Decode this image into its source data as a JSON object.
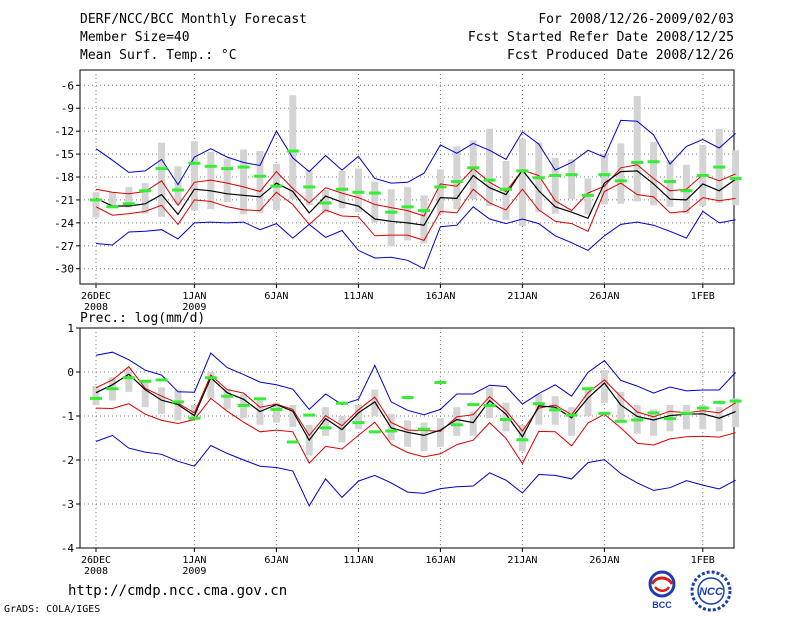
{
  "header": {
    "title": "DERF/NCC/BCC Monthly Forecast",
    "member": "Member Size=40",
    "variable": "Mean Surf. Temp.: °C",
    "period": "For 2008/12/26-2009/02/03",
    "started": "Fcst Started Refer Date 2008/12/25",
    "produced": "Fcst Produced Date 2008/12/26"
  },
  "footer": {
    "url": "http://cmdp.ncc.cma.gov.cn",
    "credit": "GrADS: COLA/IGES",
    "bcc_logo": "BCC",
    "ncc_logo": "NCC"
  },
  "colors": {
    "envelope": "#0000cc",
    "spread": "#dd0000",
    "mean": "#000000",
    "median": "#33ee33",
    "box": "#d4d4d4",
    "grid": "#7a7a7a"
  },
  "chart_data": [
    {
      "type": "line",
      "title": "Mean Surf. Temp.: °C",
      "xlabel": "",
      "ylabel": "°C",
      "ylim": [
        -32,
        -4
      ],
      "yticks": [
        -6,
        -9,
        -12,
        -15,
        -18,
        -21,
        -24,
        -27,
        -30
      ],
      "ytick_labels": [
        "-6",
        "-9",
        "-12",
        "-15",
        "-18",
        "-21",
        "-24",
        "-27",
        "-30"
      ],
      "x_tick_labels": [
        {
          "day": 0,
          "label": "26DEC",
          "year": "2008"
        },
        {
          "day": 6,
          "label": "1JAN",
          "year": "2009"
        },
        {
          "day": 11,
          "label": "6JAN"
        },
        {
          "day": 16,
          "label": "11JAN"
        },
        {
          "day": 21,
          "label": "16JAN"
        },
        {
          "day": 26,
          "label": "21JAN"
        },
        {
          "day": 31,
          "label": "26JAN"
        },
        {
          "day": 37,
          "label": "1FEB"
        }
      ],
      "days": [
        0,
        1,
        2,
        3,
        4,
        5,
        6,
        7,
        8,
        9,
        10,
        11,
        12,
        13,
        14,
        15,
        16,
        17,
        18,
        19,
        20,
        21,
        22,
        23,
        24,
        25,
        26,
        27,
        28,
        29,
        30,
        31,
        32,
        33,
        34,
        35,
        36,
        37,
        38,
        39
      ],
      "grid": true,
      "series": [
        {
          "name": "max",
          "color": "#0000cc",
          "values": [
            -14.3,
            -15.8,
            -17.4,
            -17.2,
            -15.7,
            -19.0,
            -15.4,
            -14.3,
            -15.4,
            -16.1,
            -16.5,
            -12.0,
            -15.5,
            -17.3,
            -15.2,
            -17.1,
            -15.3,
            -18.2,
            -18.8,
            -18.7,
            -17.5,
            -13.8,
            -14.9,
            -13.6,
            -14.5,
            -15.7,
            -12.1,
            -13.7,
            -17.1,
            -16.1,
            -14.5,
            -15.4,
            -10.6,
            -10.7,
            -12.5,
            -16.3,
            -14.0,
            -13.1,
            -14.2,
            -12.3
          ]
        },
        {
          "name": "upper",
          "color": "#dd0000",
          "values": [
            -19.6,
            -20.0,
            -20.2,
            -19.9,
            -18.5,
            -21.7,
            -18.7,
            -18.4,
            -18.8,
            -19.3,
            -19.9,
            -17.3,
            -19.5,
            -21.4,
            -19.4,
            -20.1,
            -20.7,
            -21.6,
            -22.0,
            -22.4,
            -23.1,
            -18.9,
            -19.2,
            -16.9,
            -18.7,
            -19.9,
            -17.1,
            -17.8,
            -21.1,
            -22.4,
            -20.1,
            -19.2,
            -16.8,
            -16.4,
            -18.2,
            -19.8,
            -19.6,
            -17.7,
            -18.5,
            -17.6
          ]
        },
        {
          "name": "mean",
          "color": "#000000",
          "values": [
            -20.8,
            -21.8,
            -21.8,
            -21.5,
            -20.3,
            -22.9,
            -19.6,
            -19.8,
            -20.2,
            -20.4,
            -20.6,
            -18.8,
            -19.9,
            -22.7,
            -20.5,
            -21.3,
            -21.8,
            -23.5,
            -23.8,
            -24.0,
            -24.3,
            -20.7,
            -20.8,
            -17.8,
            -19.4,
            -20.3,
            -17.1,
            -19.8,
            -21.9,
            -22.6,
            -23.4,
            -18.8,
            -17.3,
            -17.2,
            -18.9,
            -20.9,
            -21.0,
            -18.9,
            -19.8,
            -18.3
          ]
        },
        {
          "name": "lower",
          "color": "#dd0000",
          "values": [
            -21.9,
            -23.0,
            -22.8,
            -22.5,
            -21.7,
            -24.2,
            -21.0,
            -21.2,
            -21.9,
            -22.3,
            -22.4,
            -20.0,
            -21.6,
            -24.2,
            -22.3,
            -23.1,
            -23.2,
            -25.7,
            -25.6,
            -25.6,
            -26.3,
            -22.5,
            -22.7,
            -19.6,
            -21.4,
            -22.3,
            -19.6,
            -22.3,
            -23.8,
            -24.1,
            -25.1,
            -19.9,
            -18.8,
            -20.3,
            -20.6,
            -22.7,
            -22.5,
            -20.7,
            -21.1,
            -20.8
          ]
        },
        {
          "name": "min",
          "color": "#0000cc",
          "values": [
            -26.7,
            -26.9,
            -25.2,
            -25.1,
            -24.9,
            -26.1,
            -24.0,
            -23.9,
            -24.0,
            -23.9,
            -24.9,
            -24.1,
            -26.0,
            -24.2,
            -25.9,
            -25.0,
            -27.6,
            -28.6,
            -28.5,
            -28.9,
            -30.0,
            -24.5,
            -24.3,
            -21.9,
            -23.5,
            -24.1,
            -23.5,
            -24.1,
            -25.7,
            -26.6,
            -27.6,
            -25.7,
            -24.2,
            -23.9,
            -24.3,
            -25.1,
            -26.0,
            -22.5,
            -24.0,
            -23.6
          ]
        }
      ],
      "median_dashes": [
        -21.0,
        -21.9,
        -21.5,
        -19.8,
        -16.9,
        -19.7,
        -16.2,
        -16.6,
        -16.9,
        -16.7,
        -17.9,
        -19.2,
        -14.6,
        -19.3,
        -21.4,
        -19.6,
        -20.0,
        -20.1,
        -22.6,
        -21.9,
        -22.4,
        -19.3,
        -18.6,
        -16.8,
        -18.4,
        -19.6,
        -17.2,
        -18.1,
        -17.8,
        -17.7,
        -20.4,
        -17.7,
        -18.5,
        -16.1,
        -16.0,
        -18.6,
        -19.8,
        -17.8,
        -16.7,
        -18.2
      ],
      "box_top": [
        -20.0,
        -20.0,
        -19.3,
        -18.8,
        -13.5,
        -16.6,
        -13.3,
        -14.7,
        -15.6,
        -14.4,
        -14.6,
        -16.3,
        -7.3,
        -17.1,
        -19.7,
        -17.2,
        -16.9,
        -18.6,
        -19.6,
        -19.3,
        -20.4,
        -17.0,
        -14.0,
        -13.2,
        -11.7,
        -15.9,
        -13.0,
        -13.5,
        -15.5,
        -15.7,
        -18.2,
        -15.0,
        -13.6,
        -7.4,
        -13.4,
        -15.8,
        -16.4,
        -13.8,
        -11.7,
        -14.5
      ],
      "box_bottom": [
        -23.3,
        -21.7,
        -22.0,
        -22.8,
        -23.2,
        -21.6,
        -22.4,
        -22.2,
        -21.3,
        -22.9,
        -22.7,
        -22.3,
        -20.9,
        -21.7,
        -22.7,
        -22.1,
        -22.6,
        -24.0,
        -27.1,
        -26.3,
        -26.7,
        -22.8,
        -22.2,
        -20.9,
        -21.8,
        -23.6,
        -24.4,
        -22.6,
        -22.8,
        -20.9,
        -22.9,
        -21.6,
        -21.5,
        -21.2,
        -21.7,
        -21.9,
        -22.8,
        -21.8,
        -21.4,
        -21.7
      ]
    },
    {
      "type": "line",
      "title": "Prec.: log(mm/d)",
      "xlabel": "",
      "ylabel": "log(mm/d)",
      "ylim": [
        -4,
        1
      ],
      "yticks": [
        1,
        0,
        -1,
        -2,
        -3,
        -4
      ],
      "ytick_labels": [
        "1",
        "0",
        "-1",
        "-2",
        "-3",
        "-4"
      ],
      "x_tick_labels": [
        {
          "day": 0,
          "label": "26DEC",
          "year": "2008"
        },
        {
          "day": 6,
          "label": "1JAN",
          "year": "2009"
        },
        {
          "day": 11,
          "label": "6JAN"
        },
        {
          "day": 16,
          "label": "11JAN"
        },
        {
          "day": 21,
          "label": "16JAN"
        },
        {
          "day": 26,
          "label": "21JAN"
        },
        {
          "day": 31,
          "label": "26JAN"
        },
        {
          "day": 37,
          "label": "1FEB"
        }
      ],
      "days": [
        0,
        1,
        2,
        3,
        4,
        5,
        6,
        7,
        8,
        9,
        10,
        11,
        12,
        13,
        14,
        15,
        16,
        17,
        18,
        19,
        20,
        21,
        22,
        23,
        24,
        25,
        26,
        27,
        28,
        29,
        30,
        31,
        32,
        33,
        34,
        35,
        36,
        37,
        38,
        39
      ],
      "grid": true,
      "series": [
        {
          "name": "max",
          "color": "#0000cc",
          "values": [
            0.38,
            0.45,
            0.28,
            0.04,
            -0.07,
            -0.45,
            -0.46,
            0.43,
            0.1,
            -0.06,
            -0.23,
            -0.29,
            -0.39,
            -0.85,
            -0.5,
            -0.74,
            -0.62,
            0.15,
            -0.68,
            -0.87,
            -0.97,
            -0.85,
            -0.5,
            -0.5,
            -0.3,
            -0.33,
            -0.73,
            -0.49,
            -0.29,
            -0.55,
            -0.01,
            0.26,
            -0.19,
            -0.32,
            -0.48,
            -0.34,
            -0.43,
            -0.41,
            -0.41,
            -0.01
          ]
        },
        {
          "name": "upper",
          "color": "#dd0000",
          "values": [
            -0.36,
            -0.18,
            0.12,
            -0.37,
            -0.55,
            -0.71,
            -0.93,
            -0.07,
            -0.4,
            -0.48,
            -0.8,
            -0.73,
            -0.85,
            -1.44,
            -0.99,
            -1.22,
            -0.86,
            -0.57,
            -1.15,
            -1.32,
            -1.33,
            -1.35,
            -1.02,
            -0.97,
            -0.56,
            -0.88,
            -1.34,
            -0.82,
            -0.75,
            -0.97,
            -0.47,
            -0.18,
            -0.56,
            -0.91,
            -1.02,
            -0.89,
            -0.93,
            -0.88,
            -0.93,
            -0.7
          ]
        },
        {
          "name": "mean",
          "color": "#000000",
          "values": [
            -0.47,
            -0.29,
            -0.05,
            -0.4,
            -0.64,
            -0.74,
            -0.99,
            -0.13,
            -0.47,
            -0.62,
            -0.9,
            -0.74,
            -0.89,
            -1.55,
            -1.06,
            -1.31,
            -0.93,
            -0.68,
            -1.27,
            -1.37,
            -1.44,
            -1.32,
            -1.08,
            -1.15,
            -0.65,
            -0.96,
            -1.47,
            -0.77,
            -0.8,
            -1.04,
            -0.59,
            -0.25,
            -0.75,
            -1.01,
            -1.09,
            -0.99,
            -0.96,
            -0.95,
            -1.05,
            -0.9
          ]
        },
        {
          "name": "lower",
          "color": "#dd0000",
          "values": [
            -0.82,
            -0.83,
            -0.72,
            -0.96,
            -1.1,
            -1.17,
            -1.08,
            -0.6,
            -0.89,
            -1.14,
            -1.36,
            -1.32,
            -1.36,
            -2.07,
            -1.69,
            -1.75,
            -1.44,
            -1.14,
            -1.64,
            -1.83,
            -1.93,
            -1.86,
            -1.65,
            -1.55,
            -1.15,
            -1.51,
            -2.08,
            -1.35,
            -1.36,
            -1.68,
            -1.16,
            -0.96,
            -1.27,
            -1.62,
            -1.66,
            -1.52,
            -1.47,
            -1.46,
            -1.48,
            -1.38
          ]
        },
        {
          "name": "min",
          "color": "#0000cc",
          "values": [
            -1.58,
            -1.44,
            -1.73,
            -1.82,
            -1.87,
            -2.03,
            -2.14,
            -1.67,
            -1.85,
            -2.0,
            -2.14,
            -2.17,
            -2.25,
            -3.04,
            -2.43,
            -2.85,
            -2.48,
            -2.35,
            -2.52,
            -2.73,
            -2.76,
            -2.65,
            -2.61,
            -2.59,
            -2.29,
            -2.46,
            -2.75,
            -2.33,
            -2.35,
            -2.43,
            -2.06,
            -1.99,
            -2.31,
            -2.52,
            -2.69,
            -2.63,
            -2.47,
            -2.57,
            -2.66,
            -2.46
          ]
        }
      ],
      "median_dashes": [
        -0.6,
        -0.38,
        -0.13,
        -0.21,
        -0.18,
        -0.68,
        -1.05,
        -0.13,
        -0.55,
        -0.76,
        -0.61,
        -0.85,
        -1.59,
        -0.98,
        -1.27,
        -0.71,
        -1.15,
        -1.36,
        -1.34,
        -0.58,
        -1.3,
        -0.24,
        -1.2,
        -0.74,
        -0.76,
        -1.08,
        -1.54,
        -0.72,
        -0.86,
        -0.98,
        -0.38,
        -0.94,
        -1.12,
        -1.09,
        -0.93,
        -1.06,
        -0.94,
        -0.82,
        -0.69,
        -0.66
      ],
      "box_top": [
        -0.32,
        -0.12,
        0.1,
        -0.22,
        -0.35,
        -0.4,
        -0.75,
        0.0,
        -0.38,
        -0.5,
        -0.65,
        -0.7,
        -0.75,
        -1.2,
        -0.8,
        -1.0,
        -0.75,
        -0.4,
        -0.95,
        -1.1,
        -1.15,
        -1.05,
        -0.8,
        -0.9,
        -0.35,
        -0.7,
        -1.2,
        -0.5,
        -0.55,
        -0.8,
        -0.35,
        0.05,
        -0.45,
        -0.75,
        -0.85,
        -0.75,
        -0.75,
        -0.75,
        -0.8,
        -0.6
      ],
      "box_bottom": [
        -0.75,
        -0.65,
        -0.45,
        -0.8,
        -0.95,
        -1.1,
        -1.1,
        -0.6,
        -0.85,
        -1.05,
        -1.2,
        -1.15,
        -1.25,
        -1.9,
        -1.45,
        -1.6,
        -1.3,
        -1.0,
        -1.55,
        -1.7,
        -1.8,
        -1.7,
        -1.45,
        -1.45,
        -1.05,
        -1.35,
        -1.8,
        -1.2,
        -1.2,
        -1.45,
        -1.0,
        -0.7,
        -1.15,
        -1.4,
        -1.45,
        -1.35,
        -1.3,
        -1.3,
        -1.35,
        -1.25
      ]
    }
  ]
}
